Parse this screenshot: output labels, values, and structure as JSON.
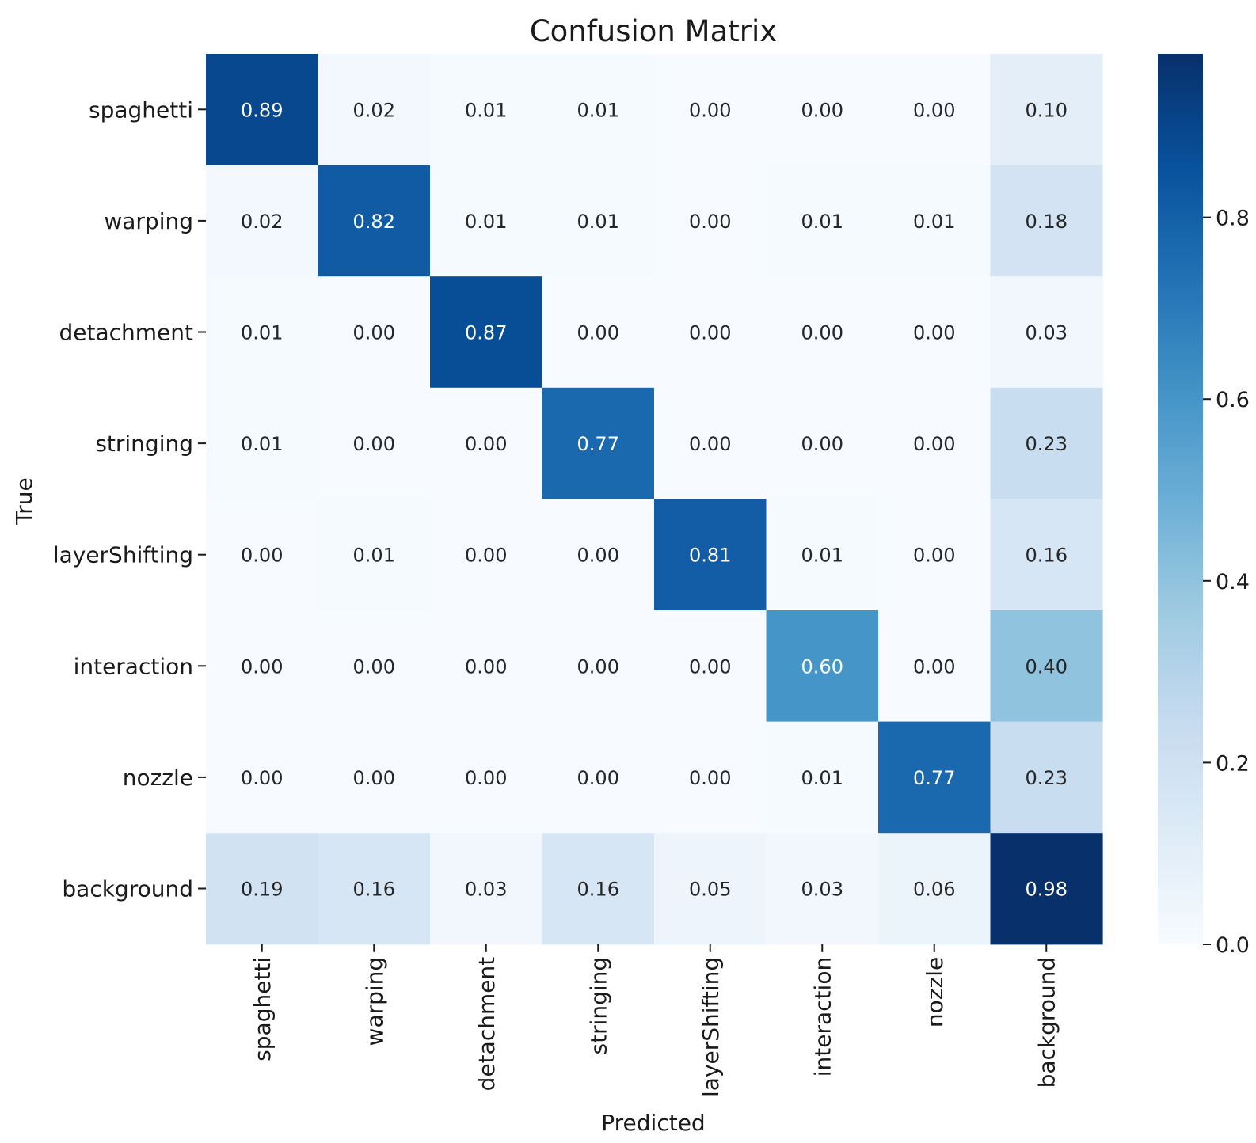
{
  "chart_data": {
    "type": "heatmap",
    "title": "Confusion Matrix",
    "xlabel": "Predicted",
    "ylabel": "True",
    "x_categories": [
      "spaghetti",
      "warping",
      "detachment",
      "stringing",
      "layerShifting",
      "interaction",
      "nozzle",
      "background"
    ],
    "y_categories": [
      "spaghetti",
      "warping",
      "detachment",
      "stringing",
      "layerShifting",
      "interaction",
      "nozzle",
      "background"
    ],
    "values": [
      [
        0.89,
        0.02,
        0.01,
        0.01,
        0.0,
        0.0,
        0.0,
        0.1
      ],
      [
        0.02,
        0.82,
        0.01,
        0.01,
        0.0,
        0.01,
        0.01,
        0.18
      ],
      [
        0.01,
        0.0,
        0.87,
        0.0,
        0.0,
        0.0,
        0.0,
        0.03
      ],
      [
        0.01,
        0.0,
        0.0,
        0.77,
        0.0,
        0.0,
        0.0,
        0.23
      ],
      [
        0.0,
        0.01,
        0.0,
        0.0,
        0.81,
        0.01,
        0.0,
        0.16
      ],
      [
        0.0,
        0.0,
        0.0,
        0.0,
        0.0,
        0.6,
        0.0,
        0.4
      ],
      [
        0.0,
        0.0,
        0.0,
        0.0,
        0.0,
        0.01,
        0.77,
        0.23
      ],
      [
        0.19,
        0.16,
        0.03,
        0.16,
        0.05,
        0.03,
        0.06,
        0.98
      ]
    ],
    "value_labels": [
      [
        "0.89",
        "0.02",
        "0.01",
        "0.01",
        "0.00",
        "0.00",
        "0.00",
        "0.10"
      ],
      [
        "0.02",
        "0.82",
        "0.01",
        "0.01",
        "0.00",
        "0.01",
        "0.01",
        "0.18"
      ],
      [
        "0.01",
        "0.00",
        "0.87",
        "0.00",
        "0.00",
        "0.00",
        "0.00",
        "0.03"
      ],
      [
        "0.01",
        "0.00",
        "0.00",
        "0.77",
        "0.00",
        "0.00",
        "0.00",
        "0.23"
      ],
      [
        "0.00",
        "0.01",
        "0.00",
        "0.00",
        "0.81",
        "0.01",
        "0.00",
        "0.16"
      ],
      [
        "0.00",
        "0.00",
        "0.00",
        "0.00",
        "0.00",
        "0.60",
        "0.00",
        "0.40"
      ],
      [
        "0.00",
        "0.00",
        "0.00",
        "0.00",
        "0.00",
        "0.01",
        "0.77",
        "0.23"
      ],
      [
        "0.19",
        "0.16",
        "0.03",
        "0.16",
        "0.05",
        "0.03",
        "0.06",
        "0.98"
      ]
    ],
    "colormap": "Blues",
    "vmin": 0,
    "vmax": 0.98,
    "colorbar": {
      "ticks": [
        0.0,
        0.2,
        0.4,
        0.6,
        0.8
      ],
      "tick_labels": [
        "0.0",
        "0.2",
        "0.4",
        "0.6",
        "0.8"
      ]
    },
    "colors": {
      "scale": [
        "#f7fbff",
        "#deebf7",
        "#c6dbef",
        "#9ecae1",
        "#6baed6",
        "#4292c6",
        "#2171b5",
        "#08519c",
        "#08306b"
      ],
      "dark_text": "#262626",
      "light_text": "#ffffff"
    }
  }
}
